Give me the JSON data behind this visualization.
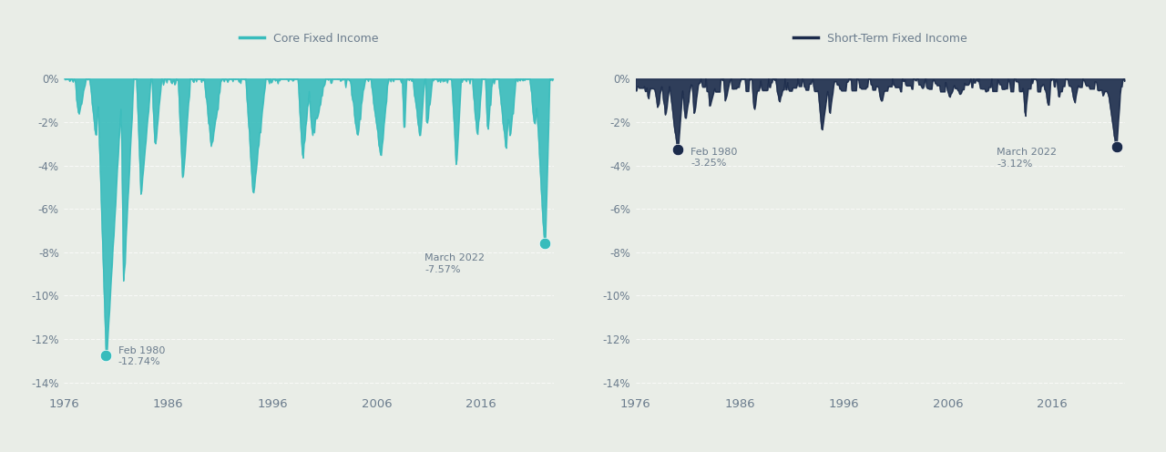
{
  "left_title": "Core Fixed Income",
  "right_title": "Short-Term Fixed Income",
  "left_color": "#38BCBC",
  "right_color": "#1B2B4B",
  "text_color": "#6B7C8D",
  "background_color": "#E9EDE7",
  "grid_color": "#FFFFFF",
  "separator_color": "#BBBBBB",
  "ylim": [
    -14.5,
    0.5
  ],
  "yticks": [
    0,
    -2,
    -4,
    -6,
    -8,
    -10,
    -12,
    -14
  ],
  "xticks": [
    1976,
    1986,
    1996,
    2006,
    2016
  ],
  "xmin": 1976,
  "xmax": 2023,
  "left_ann1_label": "Feb 1980",
  "left_ann1_val": "-12.74%",
  "left_ann2_label": "March 2022",
  "left_ann2_val": "-7.57%",
  "right_ann1_label": "Feb 1980",
  "right_ann1_val": "-3.25%",
  "right_ann2_label": "March 2022",
  "right_ann2_val": "-3.12%"
}
